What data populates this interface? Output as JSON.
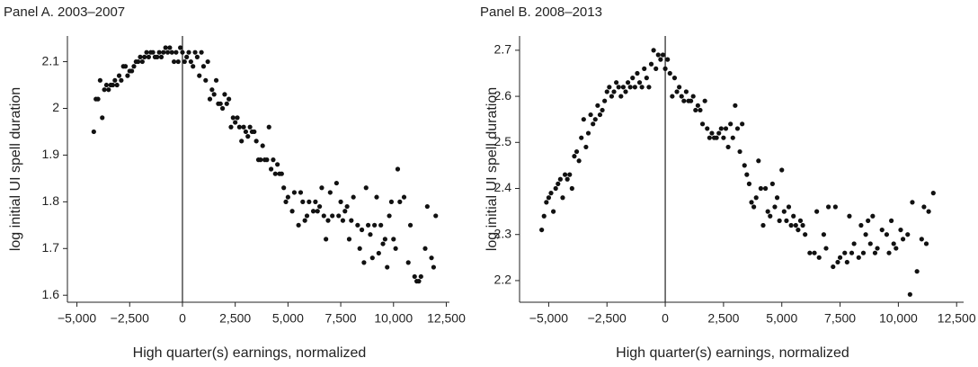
{
  "chart_data": [
    {
      "type": "scatter",
      "title": "Panel A. 2003–2007",
      "x_label": "High quarter(s) earnings, normalized",
      "y_label": "log initial UI spell duration",
      "color": "#111111",
      "xlim": [
        -5450,
        12650
      ],
      "ylim": [
        1.585,
        2.155
      ],
      "xticks": [
        {
          "value": -5000,
          "label": "−5,000"
        },
        {
          "value": -2500,
          "label": "−2,500"
        },
        0,
        {
          "value": 2500,
          "label": "2,500"
        },
        {
          "value": 5000,
          "label": "5,000"
        },
        {
          "value": 7500,
          "label": "7,500"
        },
        {
          "value": 10000,
          "label": "10,000"
        },
        {
          "value": 12500,
          "label": "12,500"
        }
      ],
      "yticks": [
        1.6,
        1.7,
        1.8,
        1.9,
        2,
        2.1
      ],
      "vline": 0,
      "x": [
        -4200,
        -4100,
        -4000,
        -3900,
        -3800,
        -3700,
        -3600,
        -3500,
        -3400,
        -3300,
        -3200,
        -3100,
        -3000,
        -2900,
        -2800,
        -2700,
        -2600,
        -2500,
        -2400,
        -2300,
        -2200,
        -2100,
        -2000,
        -1900,
        -1800,
        -1700,
        -1600,
        -1500,
        -1400,
        -1300,
        -1200,
        -1100,
        -1000,
        -900,
        -800,
        -700,
        -600,
        -500,
        -400,
        -300,
        -200,
        -100,
        0,
        100,
        200,
        300,
        400,
        500,
        600,
        700,
        800,
        900,
        1000,
        1100,
        1200,
        1300,
        1400,
        1500,
        1600,
        1700,
        1800,
        1900,
        2000,
        2100,
        2200,
        2300,
        2400,
        2500,
        2600,
        2700,
        2800,
        2900,
        3000,
        3100,
        3200,
        3300,
        3400,
        3500,
        3600,
        3700,
        3800,
        3900,
        4000,
        4100,
        4200,
        4300,
        4400,
        4500,
        4600,
        4700,
        4800,
        4900,
        5000,
        5200,
        5300,
        5500,
        5600,
        5700,
        5800,
        5900,
        6000,
        6200,
        6300,
        6400,
        6500,
        6600,
        6700,
        6800,
        6900,
        7000,
        7100,
        7300,
        7400,
        7500,
        7600,
        7700,
        7800,
        7900,
        8000,
        8100,
        8300,
        8400,
        8500,
        8600,
        8700,
        8800,
        8900,
        9000,
        9100,
        9200,
        9300,
        9400,
        9500,
        9600,
        9700,
        9800,
        9900,
        10000,
        10100,
        10200,
        10300,
        10500,
        10700,
        10800,
        11000,
        11100,
        11200,
        11300,
        11500,
        11600,
        11800,
        11900,
        12000
      ],
      "values": [
        1.95,
        2.02,
        2.02,
        2.06,
        1.98,
        2.04,
        2.05,
        2.04,
        2.05,
        2.05,
        2.06,
        2.05,
        2.07,
        2.06,
        2.09,
        2.09,
        2.07,
        2.08,
        2.08,
        2.09,
        2.1,
        2.1,
        2.11,
        2.1,
        2.11,
        2.12,
        2.11,
        2.12,
        2.12,
        2.11,
        2.11,
        2.12,
        2.11,
        2.12,
        2.13,
        2.12,
        2.13,
        2.12,
        2.1,
        2.12,
        2.1,
        2.13,
        2.12,
        2.1,
        2.11,
        2.12,
        2.1,
        2.09,
        2.12,
        2.11,
        2.07,
        2.12,
        2.09,
        2.06,
        2.1,
        2.02,
        2.04,
        2.03,
        2.06,
        2.01,
        2.01,
        2,
        2.03,
        2.01,
        2.02,
        1.96,
        1.98,
        1.97,
        1.98,
        1.96,
        1.93,
        1.96,
        1.95,
        1.94,
        1.96,
        1.95,
        1.95,
        1.93,
        1.89,
        1.89,
        1.92,
        1.89,
        1.89,
        1.96,
        1.87,
        1.89,
        1.86,
        1.88,
        1.86,
        1.86,
        1.83,
        1.8,
        1.81,
        1.78,
        1.82,
        1.75,
        1.82,
        1.8,
        1.76,
        1.77,
        1.8,
        1.78,
        1.8,
        1.78,
        1.79,
        1.83,
        1.77,
        1.72,
        1.76,
        1.82,
        1.77,
        1.84,
        1.77,
        1.8,
        1.76,
        1.78,
        1.79,
        1.72,
        1.76,
        1.81,
        1.75,
        1.7,
        1.74,
        1.67,
        1.83,
        1.75,
        1.73,
        1.68,
        1.75,
        1.81,
        1.69,
        1.75,
        1.71,
        1.72,
        1.66,
        1.77,
        1.8,
        1.72,
        1.7,
        1.87,
        1.8,
        1.81,
        1.67,
        1.75,
        1.64,
        1.63,
        1.63,
        1.64,
        1.7,
        1.79,
        1.68,
        1.66,
        1.77
      ]
    },
    {
      "type": "scatter",
      "title": "Panel B. 2008–2013",
      "x_label": "High quarter(s) earnings, normalized",
      "y_label": "log initial UI spell duration",
      "color": "#111111",
      "xlim": [
        -6250,
        12800
      ],
      "ylim": [
        2.153,
        2.731
      ],
      "xticks": [
        {
          "value": -5000,
          "label": "−5,000"
        },
        {
          "value": -2500,
          "label": "−2,500"
        },
        0,
        {
          "value": 2500,
          "label": "2,500"
        },
        {
          "value": 5000,
          "label": "5,000"
        },
        {
          "value": 7500,
          "label": "7,500"
        },
        {
          "value": 10000,
          "label": "10,000"
        },
        {
          "value": 12500,
          "label": "12,500"
        }
      ],
      "yticks": [
        2.2,
        2.3,
        2.4,
        2.5,
        2.6,
        2.7
      ],
      "vline": 0,
      "x": [
        -5300,
        -5200,
        -5100,
        -5000,
        -4900,
        -4800,
        -4700,
        -4600,
        -4500,
        -4400,
        -4300,
        -4200,
        -4100,
        -4000,
        -3900,
        -3800,
        -3700,
        -3600,
        -3500,
        -3400,
        -3300,
        -3200,
        -3100,
        -3000,
        -2900,
        -2800,
        -2700,
        -2600,
        -2500,
        -2400,
        -2300,
        -2200,
        -2100,
        -2000,
        -1900,
        -1800,
        -1700,
        -1600,
        -1500,
        -1400,
        -1300,
        -1200,
        -1100,
        -1000,
        -900,
        -800,
        -700,
        -600,
        -500,
        -400,
        -300,
        -200,
        -100,
        0,
        100,
        200,
        300,
        400,
        500,
        600,
        700,
        800,
        900,
        1000,
        1100,
        1200,
        1300,
        1400,
        1500,
        1600,
        1700,
        1800,
        1900,
        2000,
        2100,
        2200,
        2300,
        2400,
        2500,
        2600,
        2700,
        2800,
        2900,
        3000,
        3100,
        3200,
        3300,
        3400,
        3500,
        3600,
        3700,
        3800,
        3900,
        4000,
        4100,
        4200,
        4300,
        4400,
        4500,
        4600,
        4700,
        4800,
        4900,
        5000,
        5100,
        5200,
        5300,
        5400,
        5500,
        5600,
        5700,
        5800,
        5900,
        6000,
        6200,
        6400,
        6500,
        6600,
        6800,
        6900,
        7000,
        7200,
        7300,
        7400,
        7500,
        7700,
        7800,
        7900,
        8000,
        8100,
        8300,
        8400,
        8500,
        8600,
        8700,
        8800,
        8900,
        9000,
        9100,
        9300,
        9500,
        9600,
        9700,
        9800,
        9900,
        10100,
        10200,
        10400,
        10500,
        10600,
        10800,
        11000,
        11100,
        11200,
        11300,
        11500
      ],
      "values": [
        2.31,
        2.34,
        2.37,
        2.38,
        2.39,
        2.35,
        2.4,
        2.41,
        2.42,
        2.38,
        2.43,
        2.42,
        2.43,
        2.4,
        2.47,
        2.48,
        2.46,
        2.51,
        2.55,
        2.49,
        2.52,
        2.56,
        2.54,
        2.55,
        2.58,
        2.56,
        2.57,
        2.59,
        2.61,
        2.62,
        2.6,
        2.61,
        2.63,
        2.62,
        2.6,
        2.62,
        2.61,
        2.63,
        2.62,
        2.64,
        2.62,
        2.65,
        2.63,
        2.62,
        2.66,
        2.64,
        2.62,
        2.67,
        2.7,
        2.66,
        2.69,
        2.68,
        2.69,
        2.66,
        2.68,
        2.65,
        2.6,
        2.64,
        2.61,
        2.62,
        2.6,
        2.59,
        2.61,
        2.59,
        2.59,
        2.6,
        2.57,
        2.58,
        2.57,
        2.54,
        2.59,
        2.53,
        2.51,
        2.52,
        2.51,
        2.51,
        2.52,
        2.53,
        2.51,
        2.53,
        2.49,
        2.54,
        2.51,
        2.58,
        2.53,
        2.48,
        2.54,
        2.45,
        2.43,
        2.41,
        2.37,
        2.36,
        2.38,
        2.46,
        2.4,
        2.32,
        2.4,
        2.35,
        2.34,
        2.41,
        2.36,
        2.38,
        2.33,
        2.44,
        2.35,
        2.33,
        2.36,
        2.32,
        2.34,
        2.32,
        2.31,
        2.33,
        2.32,
        2.3,
        2.26,
        2.26,
        2.35,
        2.25,
        2.3,
        2.27,
        2.36,
        2.23,
        2.36,
        2.24,
        2.25,
        2.26,
        2.24,
        2.34,
        2.26,
        2.28,
        2.25,
        2.32,
        2.26,
        2.3,
        2.33,
        2.28,
        2.34,
        2.26,
        2.27,
        2.31,
        2.3,
        2.26,
        2.33,
        2.28,
        2.27,
        2.31,
        2.29,
        2.3,
        2.17,
        2.37,
        2.22,
        2.29,
        2.36,
        2.28,
        2.35,
        2.39
      ]
    }
  ]
}
